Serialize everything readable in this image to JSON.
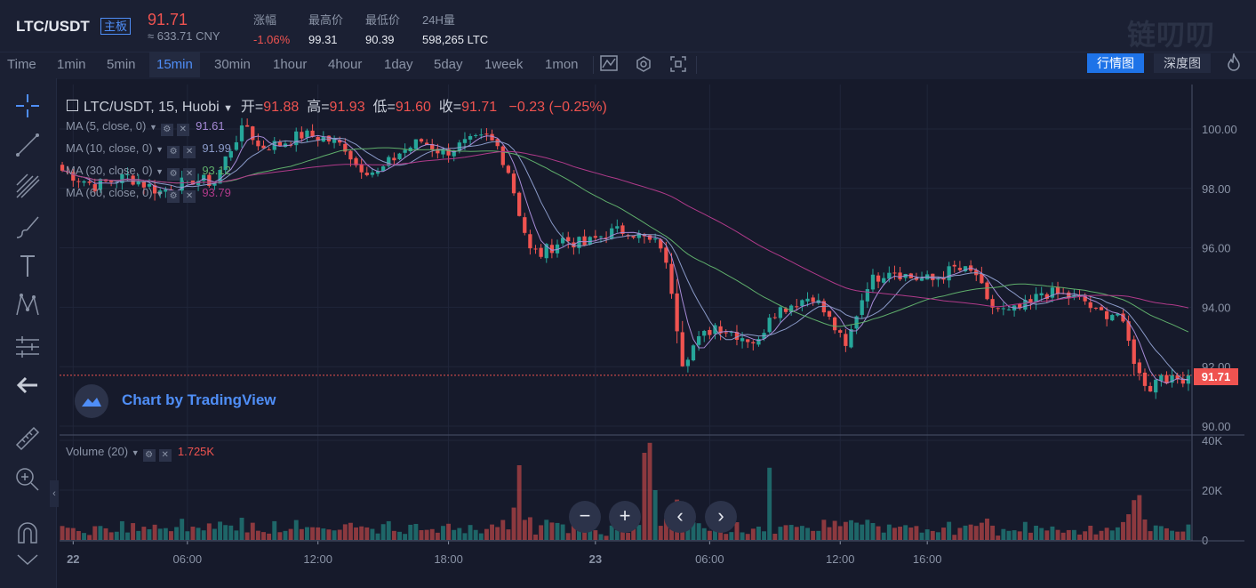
{
  "header": {
    "symbol": "LTC/USDT",
    "tag": "主板",
    "price": "91.71",
    "cny": "≈ 633.71 CNY",
    "stats": [
      {
        "label": "涨幅",
        "value": "-1.06%"
      },
      {
        "label": "最高价",
        "value": "99.31"
      },
      {
        "label": "最低价",
        "value": "90.39"
      },
      {
        "label": "24H量",
        "value": "598,265 LTC"
      }
    ],
    "logo": "链叨叨"
  },
  "toolbar": {
    "intervals": [
      "Time",
      "1min",
      "5min",
      "15min",
      "30min",
      "1hour",
      "4hour",
      "1day",
      "5day",
      "1week",
      "1mon"
    ],
    "active": "15min",
    "market_chart": "行情图",
    "depth_chart": "深度图"
  },
  "legend": {
    "title": "LTC/USDT, 15, Huobi",
    "o_label": "开=",
    "o": "91.88",
    "h_label": "高=",
    "h": "91.93",
    "l_label": "低=",
    "l": "91.60",
    "c_label": "收=",
    "c": "91.71",
    "change": "−0.23 (−0.25%)"
  },
  "ma_lines": [
    {
      "label": "MA (5, close, 0)",
      "value": "91.61",
      "color": "#a78bd7"
    },
    {
      "label": "MA (10, close, 0)",
      "value": "91.99",
      "color": "#8a9ac8"
    },
    {
      "label": "MA (30, close, 0)",
      "value": "93.12",
      "color": "#5fae6b"
    },
    {
      "label": "MA (60, close, 0)",
      "value": "93.79",
      "color": "#b03a8a"
    }
  ],
  "volume_legend": {
    "label": "Volume (20)",
    "value": "1.725K"
  },
  "watermark": "Chart by TradingView",
  "chart_data": {
    "type": "candlestick",
    "symbol": "LTC/USDT",
    "interval": "15",
    "exchange": "Huobi",
    "last_price": 91.71,
    "price_axis_ticks": [
      "100.00",
      "98.00",
      "96.00",
      "94.00",
      "92.00",
      "90.00"
    ],
    "volume_axis_ticks": [
      "40K",
      "20K",
      "0"
    ],
    "time_ticks": [
      "22",
      "06:00",
      "12:00",
      "18:00",
      "23",
      "06:00",
      "12:00",
      "16:00"
    ],
    "ylim": [
      89.8,
      101.2
    ],
    "volume_ylim": [
      0,
      40000
    ],
    "colors": {
      "up": "#26a69a",
      "down": "#ef5350",
      "ma5": "#a78bd7",
      "ma10": "#8a9ac8",
      "ma30": "#5fae6b",
      "ma60": "#b03a8a"
    },
    "close_path": [
      [
        0,
        98.6
      ],
      [
        6,
        98.1
      ],
      [
        12,
        98.4
      ],
      [
        18,
        97.9
      ],
      [
        24,
        98.3
      ],
      [
        28,
        98.2
      ],
      [
        30,
        99.0
      ],
      [
        32,
        99.7
      ],
      [
        34,
        100.1
      ],
      [
        36,
        99.4
      ],
      [
        40,
        99.5
      ],
      [
        44,
        99.8
      ],
      [
        48,
        99.7
      ],
      [
        52,
        99.4
      ],
      [
        54,
        98.8
      ],
      [
        58,
        98.5
      ],
      [
        62,
        99.2
      ],
      [
        66,
        99.6
      ],
      [
        70,
        99.2
      ],
      [
        74,
        99.5
      ],
      [
        78,
        99.7
      ],
      [
        80,
        99.4
      ],
      [
        82,
        98.6
      ],
      [
        84,
        97.2
      ],
      [
        86,
        95.9
      ],
      [
        88,
        95.8
      ],
      [
        92,
        96.3
      ],
      [
        96,
        96.1
      ],
      [
        100,
        96.5
      ],
      [
        104,
        96.6
      ],
      [
        108,
        96.2
      ],
      [
        110,
        96.1
      ],
      [
        112,
        94.6
      ],
      [
        114,
        92.2
      ],
      [
        116,
        92.7
      ],
      [
        120,
        93.4
      ],
      [
        124,
        93.1
      ],
      [
        128,
        92.8
      ],
      [
        130,
        93.8
      ],
      [
        134,
        94.1
      ],
      [
        138,
        94.4
      ],
      [
        142,
        93.3
      ],
      [
        144,
        92.6
      ],
      [
        146,
        93.8
      ],
      [
        148,
        94.8
      ],
      [
        152,
        95.3
      ],
      [
        156,
        95.0
      ],
      [
        160,
        94.9
      ],
      [
        164,
        95.3
      ],
      [
        168,
        95.1
      ],
      [
        170,
        94.1
      ],
      [
        174,
        93.8
      ],
      [
        178,
        94.1
      ],
      [
        180,
        94.5
      ],
      [
        184,
        94.4
      ],
      [
        188,
        94.2
      ],
      [
        190,
        93.8
      ],
      [
        194,
        93.8
      ],
      [
        196,
        92.8
      ],
      [
        198,
        91.7
      ],
      [
        200,
        91.3
      ],
      [
        202,
        91.8
      ],
      [
        204,
        91.5
      ],
      [
        207,
        91.71
      ]
    ]
  }
}
